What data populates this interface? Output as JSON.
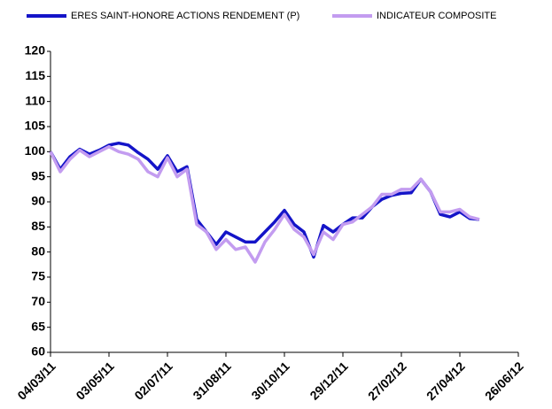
{
  "chart_data": {
    "type": "line",
    "categories": [
      "04/03/11",
      null,
      null,
      null,
      null,
      null,
      "03/05/11",
      null,
      null,
      null,
      null,
      null,
      "02/07/11",
      null,
      null,
      null,
      null,
      null,
      "31/08/11",
      null,
      null,
      null,
      null,
      null,
      "30/10/11",
      null,
      null,
      null,
      null,
      null,
      "29/12/11",
      null,
      null,
      null,
      null,
      null,
      "27/02/12",
      null,
      null,
      null,
      null,
      null,
      "27/04/12",
      null,
      null,
      null,
      null,
      null,
      "26/06/12"
    ],
    "series": [
      {
        "name": "ERES SAINT-HONORE ACTIONS RENDEMENT (P)",
        "color": "#1414c8",
        "values": [
          100,
          96.5,
          99,
          100.5,
          99.5,
          100.3,
          101.3,
          101.7,
          101.3,
          99.8,
          98.5,
          96.5,
          99.2,
          96,
          97,
          86.5,
          84,
          81.5,
          84,
          83,
          82,
          82,
          84,
          86,
          88.3,
          85.5,
          84,
          79,
          85.3,
          84,
          85.5,
          86.8,
          86.8,
          89,
          90.5,
          91.3,
          91.7,
          91.8,
          94.5,
          92,
          87.5,
          87,
          88,
          86.7,
          86.5,
          null,
          null,
          null,
          null
        ]
      },
      {
        "name": "INDICATEUR COMPOSITE",
        "color": "#c39cf0",
        "values": [
          100,
          96,
          98.5,
          100.3,
          99,
          100,
          101,
          100,
          99.5,
          98.5,
          96,
          95,
          98.8,
          95,
          96.5,
          85.5,
          84,
          80.5,
          82.5,
          80.5,
          81,
          78,
          82,
          84.5,
          87.5,
          84.5,
          83,
          79.5,
          84,
          82.5,
          85.5,
          86,
          87.5,
          89,
          91.5,
          91.5,
          92.5,
          92.5,
          94.5,
          92,
          88,
          88,
          88.5,
          87,
          86.5,
          null,
          null,
          null,
          null
        ]
      }
    ],
    "ylim": [
      60,
      120
    ],
    "yticks": [
      60,
      65,
      70,
      75,
      80,
      85,
      90,
      95,
      100,
      105,
      110,
      115,
      120
    ],
    "grid": false,
    "legend": "top"
  }
}
